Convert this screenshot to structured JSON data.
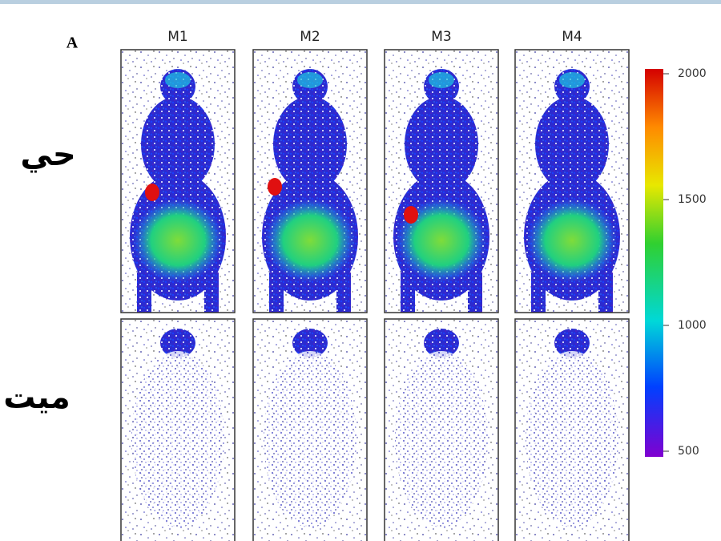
{
  "figure": {
    "panel_label": "A",
    "columns": [
      "M1",
      "M2",
      "M3",
      "M4"
    ],
    "rows": [
      "حي",
      "ميت"
    ],
    "colorbar_ticks": [
      2000,
      1500,
      1000,
      500
    ]
  }
}
